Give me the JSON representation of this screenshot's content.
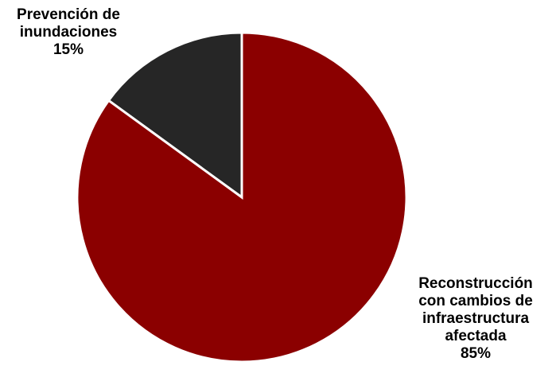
{
  "chart_data": {
    "type": "pie",
    "title": "",
    "start_angle_deg": 0,
    "direction": "counterclockwise",
    "slices": [
      {
        "label_lines": [
          "Prevención de",
          "inundaciones"
        ],
        "value": 15,
        "value_label": "15%",
        "color": "#262626"
      },
      {
        "label_lines": [
          "Reconstrucción",
          "con cambios de",
          "infraestructura",
          "afectada"
        ],
        "value": 85,
        "value_label": "85%",
        "color": "#8b0000"
      }
    ],
    "slice_border_color": "#ffffff",
    "legend": "none"
  }
}
